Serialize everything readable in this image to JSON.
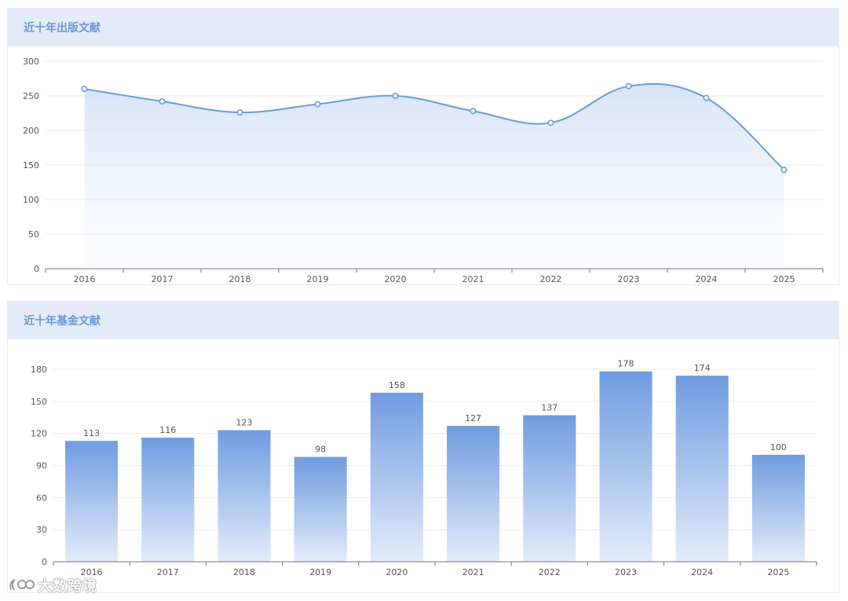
{
  "panels": [
    {
      "title": "近十年出版文献",
      "chart_data": {
        "type": "line",
        "smooth": true,
        "area_fill": true,
        "x": [
          "2016",
          "2017",
          "2018",
          "2019",
          "2020",
          "2021",
          "2022",
          "2023",
          "2024",
          "2025"
        ],
        "values": [
          260,
          242,
          226,
          238,
          250,
          228,
          211,
          264,
          247,
          143
        ],
        "ylim": [
          0,
          300
        ],
        "yticks": [
          0,
          50,
          100,
          150,
          200,
          250,
          300
        ],
        "grid": true,
        "color": "#6a9bd8"
      }
    },
    {
      "title": "近十年基金文献",
      "chart_data": {
        "type": "bar",
        "categories": [
          "2016",
          "2017",
          "2018",
          "2019",
          "2020",
          "2021",
          "2022",
          "2023",
          "2024",
          "2025"
        ],
        "values": [
          113,
          116,
          123,
          98,
          158,
          127,
          137,
          178,
          174,
          100
        ],
        "ylim": [
          0,
          180
        ],
        "yticks": [
          0,
          30,
          60,
          90,
          120,
          150,
          180
        ],
        "grid": true,
        "data_labels": true,
        "color": "#6f9ce0"
      }
    }
  ],
  "watermark": {
    "text": "大数跨境",
    "icon": "brand-logo-icon"
  }
}
